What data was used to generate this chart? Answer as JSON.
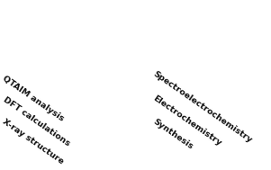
{
  "figsize": [
    3.01,
    1.89
  ],
  "dpi": 100,
  "bg_color": "white",
  "left_text_lines": [
    "X-ray structure",
    "DFT calculations",
    "QTAIM analysis"
  ],
  "right_text_lines": [
    "Synthesis",
    "Electrochemistry",
    "Spectroelectrochemistry"
  ],
  "text_rotation": -35,
  "text_fontsize": 6.8,
  "text_fontweight": "bold",
  "text_color": "#111111",
  "C_col": "#555555",
  "H_col": "#d8d8d8",
  "N_col": "#2244cc",
  "O_col": "#cc2222",
  "M_col": "#b8b820",
  "Cl_col": "#22aa22"
}
